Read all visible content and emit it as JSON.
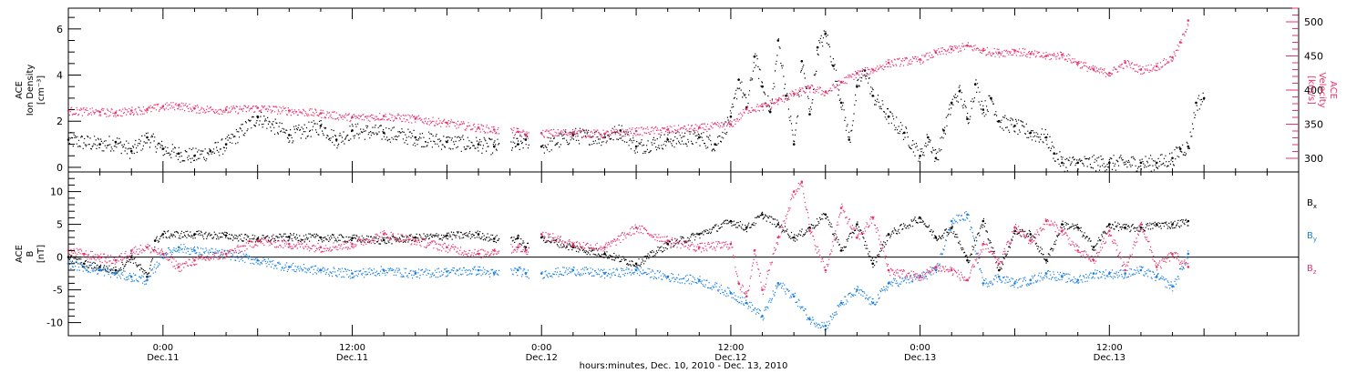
{
  "colors": {
    "black": "#000000",
    "pink": "#e8336b",
    "blue": "#1a7fe0"
  },
  "xaxis": {
    "title": "hours:minutes, Dec. 10, 2010 - Dec. 13, 2010",
    "ticks": [
      {
        "t": 24,
        "time": "0:00",
        "day": "Dec.11"
      },
      {
        "t": 36,
        "time": "12:00",
        "day": "Dec.11"
      },
      {
        "t": 48,
        "time": "0:00",
        "day": "Dec.12"
      },
      {
        "t": 60,
        "time": "12:00",
        "day": "Dec.12"
      },
      {
        "t": 72,
        "time": "0:00",
        "day": "Dec.13"
      },
      {
        "t": 84,
        "time": "12:00",
        "day": "Dec.13"
      }
    ]
  },
  "chart_data": [
    {
      "type": "scatter",
      "xrange_hours": [
        18,
        96
      ],
      "ylabel_left": [
        "ACE",
        "Ion Density",
        "[cm⁻³]"
      ],
      "ylim_left": [
        -0.2,
        6.9
      ],
      "yticks_left": [
        "0",
        "2",
        "4",
        "6"
      ],
      "ylabel_right": [
        "ACE",
        "Velocity",
        "[km/s]"
      ],
      "ylim_right": [
        280,
        520
      ],
      "yticks_right": [
        "300",
        "350",
        "400",
        "450",
        "500"
      ],
      "gaps_hours": [
        [
          45.3,
          46
        ],
        [
          47.2,
          48
        ]
      ],
      "series": [
        {
          "axis": "left",
          "color": "#000000",
          "x": [
            18,
            20,
            21,
            22,
            23,
            24,
            25,
            26,
            27,
            28,
            30,
            32,
            34,
            35,
            36,
            38,
            40,
            42,
            44,
            45,
            46.5,
            47,
            48,
            50,
            52,
            53,
            54,
            56,
            58,
            59,
            60,
            60.5,
            61,
            61.5,
            62,
            62.5,
            63,
            63.5,
            64,
            64.5,
            65,
            65.5,
            66,
            66.5,
            67,
            67.5,
            68,
            68.5,
            69,
            70,
            71,
            72,
            72.5,
            73,
            73.5,
            74,
            74.5,
            75,
            75.5,
            76,
            76.5,
            77,
            78,
            79,
            80,
            80.5,
            81,
            82,
            84,
            86,
            87,
            88,
            88.5,
            89,
            89.5,
            90
          ],
          "y": [
            1.2,
            1.0,
            1.1,
            0.7,
            1.3,
            0.8,
            0.6,
            0.5,
            0.7,
            1.0,
            2.2,
            1.4,
            1.8,
            1.2,
            1.6,
            1.5,
            1.3,
            1.1,
            1.0,
            0.9,
            1.0,
            1.2,
            0.9,
            1.4,
            1.3,
            1.6,
            0.9,
            1.2,
            1.3,
            1.0,
            2.2,
            3.8,
            2.6,
            4.8,
            3.5,
            2.4,
            5.5,
            3.1,
            1.0,
            4.6,
            2.3,
            5.2,
            5.8,
            4.4,
            2.8,
            1.2,
            3.5,
            4.2,
            3.1,
            2.2,
            1.5,
            0.5,
            1.3,
            0.4,
            1.6,
            2.8,
            3.3,
            2.1,
            3.6,
            2.5,
            3.0,
            2.0,
            1.8,
            1.5,
            1.3,
            0.6,
            0.2,
            0.2,
            0.2,
            0.2,
            0.2,
            0.4,
            0.8,
            0.9,
            2.8,
            3.0
          ]
        },
        {
          "axis": "right",
          "color": "#e8336b",
          "x": [
            18,
            20,
            21,
            22,
            23,
            24,
            25,
            26,
            28,
            30,
            32,
            34,
            36,
            38,
            40,
            42,
            44,
            45,
            46.5,
            47,
            48,
            50,
            52,
            54,
            56,
            58,
            60,
            61,
            62,
            63,
            64,
            65,
            66,
            67,
            68,
            69,
            70,
            72,
            73,
            74,
            75,
            76,
            77,
            78,
            79,
            80,
            81,
            82,
            83,
            84,
            85,
            86,
            87,
            88,
            88.5,
            89
          ],
          "y": [
            370,
            368,
            367,
            370,
            372,
            376,
            378,
            373,
            371,
            374,
            370,
            366,
            360,
            362,
            358,
            352,
            345,
            342,
            339,
            335,
            337,
            338,
            336,
            340,
            342,
            345,
            350,
            372,
            376,
            385,
            395,
            403,
            397,
            412,
            425,
            430,
            440,
            445,
            455,
            460,
            465,
            458,
            455,
            458,
            453,
            450,
            452,
            440,
            430,
            425,
            440,
            430,
            435,
            448,
            470,
            502
          ]
        }
      ]
    },
    {
      "type": "scatter",
      "xrange_hours": [
        18,
        96
      ],
      "ylabel": [
        "ACE",
        "B",
        "[nT]"
      ],
      "ylim": [
        -12,
        13
      ],
      "yticks": [
        "-10",
        "-5",
        "0",
        "5",
        "10"
      ],
      "gaps_hours": [
        [
          45.3,
          46
        ],
        [
          47.2,
          48
        ]
      ],
      "series": [
        {
          "name": "Bx",
          "color": "#000000",
          "x": [
            18,
            19,
            20,
            21,
            22,
            23,
            23.5,
            24,
            26,
            28,
            30,
            32,
            34,
            36,
            38,
            40,
            42,
            44,
            45,
            46.5,
            47,
            48,
            50,
            52,
            54,
            56,
            58,
            60,
            61,
            62,
            63,
            64,
            65,
            66,
            67,
            68,
            69,
            70,
            72,
            73,
            74,
            75,
            76,
            77,
            78,
            79,
            80,
            81,
            82,
            83,
            84,
            85,
            86,
            87,
            88,
            89
          ],
          "y": [
            0,
            -1,
            -1.5,
            -2,
            0,
            -3,
            2.5,
            3.5,
            3.5,
            3.3,
            2.8,
            3.1,
            3.0,
            2.9,
            2.6,
            3.0,
            3.3,
            3.5,
            2.8,
            2.9,
            1.5,
            3.0,
            1.5,
            0.5,
            -1.0,
            2.0,
            3.5,
            5.5,
            4.5,
            6.5,
            5.0,
            3.0,
            4.5,
            6.5,
            1.0,
            5.0,
            -1.0,
            3.5,
            6.0,
            3.0,
            4.5,
            -0.5,
            5.5,
            -2.0,
            4.0,
            3.5,
            -0.5,
            5.0,
            4.5,
            1.5,
            5.0,
            4.5,
            4.5,
            5.0,
            5.0,
            5.5
          ]
        },
        {
          "name": "By",
          "color": "#1a7fe0",
          "x": [
            18,
            19,
            20,
            21,
            22,
            23,
            24,
            25,
            26,
            28,
            30,
            32,
            34,
            36,
            38,
            40,
            42,
            44,
            45,
            46.5,
            47,
            48,
            50,
            52,
            54,
            56,
            58,
            60,
            61,
            62,
            63,
            64,
            65,
            66,
            67,
            68,
            69,
            70,
            72,
            73,
            74,
            75,
            76,
            77,
            78,
            79,
            80,
            81,
            82,
            83,
            84,
            85,
            86,
            87,
            88,
            89
          ],
          "y": [
            -1,
            -1.5,
            -2,
            -2.5,
            -3.0,
            -3.5,
            0.5,
            1.5,
            1.0,
            0.5,
            -0.5,
            -1.5,
            -2.0,
            -2.5,
            -2.0,
            -2.5,
            -2.2,
            -2.0,
            -2.5,
            -2.0,
            -2.5,
            -2.5,
            -2.0,
            -2.5,
            -2.0,
            -3.0,
            -3.5,
            -5.5,
            -7.0,
            -9.0,
            -4.0,
            -6.0,
            -9.5,
            -10.5,
            -7.0,
            -5.0,
            -7.0,
            -4.0,
            -3.0,
            -2.0,
            5.5,
            6.5,
            -4.0,
            -3.0,
            -4.0,
            -3.5,
            -2.5,
            -3.0,
            -3.5,
            -2.5,
            -2.5,
            -2.5,
            -2.0,
            -3.0,
            -4.5,
            0.5
          ]
        },
        {
          "name": "Bz",
          "color": "#e8336b",
          "x": [
            18,
            19,
            20,
            21,
            22,
            23,
            24,
            25,
            26,
            28,
            30,
            32,
            34,
            36,
            38,
            40,
            42,
            44,
            45,
            46.5,
            47,
            48,
            50,
            52,
            54,
            56,
            58,
            60,
            60.5,
            61,
            61.5,
            62,
            63,
            64,
            64.5,
            65,
            66,
            67,
            68,
            69,
            70,
            72,
            73,
            74,
            75,
            76,
            77,
            78,
            79,
            80,
            81,
            82,
            83,
            84,
            85,
            86,
            87,
            88,
            89
          ],
          "y": [
            1,
            0.5,
            0,
            -0.5,
            1.0,
            1.5,
            0.5,
            -1.5,
            -0.5,
            0.5,
            2.5,
            2.0,
            1.5,
            2.0,
            3.5,
            2.5,
            1.5,
            0.5,
            1.0,
            1.5,
            1.0,
            3.5,
            2.0,
            1.5,
            4.5,
            2.5,
            1.5,
            2.0,
            -4.0,
            -6.0,
            1.0,
            -5.0,
            3.0,
            10.0,
            11.5,
            4.0,
            -2.0,
            7.5,
            3.0,
            6.0,
            -2.0,
            -3.0,
            -1.5,
            -2.0,
            -3.5,
            2.0,
            -1.0,
            4.5,
            2.5,
            5.5,
            4.0,
            1.0,
            -0.5,
            4.0,
            -2.0,
            5.0,
            -1.5,
            0.5,
            -1.5
          ]
        }
      ]
    }
  ]
}
